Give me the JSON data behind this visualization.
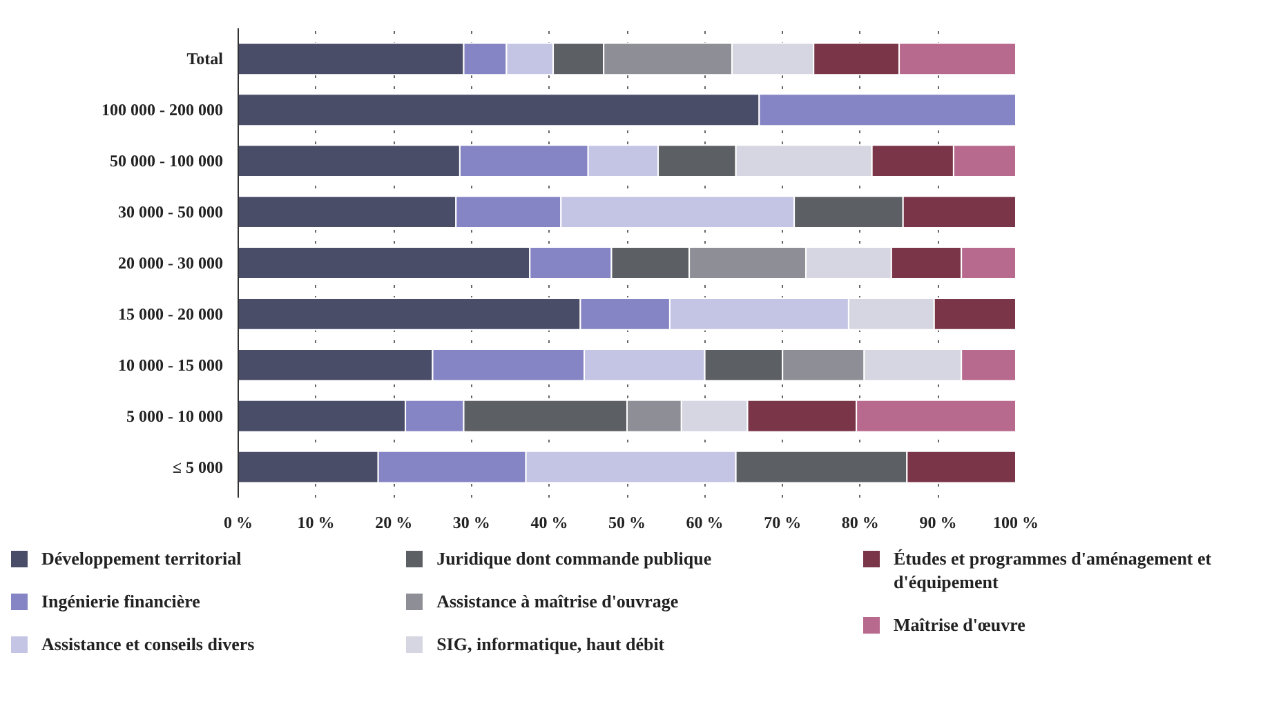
{
  "chart_data": {
    "type": "bar",
    "orientation": "horizontal",
    "stacked": true,
    "categories": [
      "Total",
      "100 000 - 200 000",
      "50 000 - 100 000",
      "30 000 - 50 000",
      "20 000 - 30 000",
      "15 000 - 20 000",
      "10 000 - 15 000",
      "5 000 - 10 000",
      "≤ 5 000"
    ],
    "series": [
      {
        "name": "Développement territorial",
        "color": "#4a4d68",
        "values": [
          29,
          67,
          28.5,
          28,
          37.5,
          44,
          25,
          21.5,
          18
        ]
      },
      {
        "name": "Ingénierie financière",
        "color": "#8584c4",
        "values": [
          5.5,
          33,
          16.5,
          13.5,
          10.5,
          11.5,
          19.5,
          7.5,
          19
        ]
      },
      {
        "name": "Assistance et conseils divers",
        "color": "#c4c4e4",
        "values": [
          6,
          null,
          9,
          30,
          null,
          23,
          15.5,
          null,
          27
        ]
      },
      {
        "name": "Juridique dont commande publique",
        "color": "#5c5f64",
        "values": [
          6.5,
          null,
          10,
          14,
          10,
          null,
          10,
          21,
          22
        ]
      },
      {
        "name": "Assistance à maîtrise d'ouvrage",
        "color": "#8e8e96",
        "values": [
          16.5,
          null,
          null,
          null,
          15,
          null,
          10.5,
          7,
          null
        ]
      },
      {
        "name": "SIG, informatique, haut débit",
        "color": "#d6d6e2",
        "values": [
          10.5,
          null,
          17.5,
          null,
          11,
          11,
          12.5,
          8.5,
          null
        ]
      },
      {
        "name": "Études et programmes d'aménagement et d'équipement",
        "color": "#7a3548",
        "values": [
          11,
          null,
          10.5,
          14.5,
          9,
          10.5,
          null,
          14,
          14
        ]
      },
      {
        "name": "Maîtrise d'œuvre",
        "color": "#b8698e",
        "values": [
          15,
          null,
          8,
          null,
          7,
          null,
          7,
          20.5,
          null
        ]
      }
    ],
    "xlim": [
      0,
      100
    ],
    "xticks": [
      {
        "value": 0,
        "label": "0 %"
      },
      {
        "value": 10,
        "label": "10 %"
      },
      {
        "value": 20,
        "label": "20 %"
      },
      {
        "value": 30,
        "label": "30 %"
      },
      {
        "value": 40,
        "label": "40 %"
      },
      {
        "value": 50,
        "label": "50 %"
      },
      {
        "value": 60,
        "label": "60 %"
      },
      {
        "value": 70,
        "label": "70 %"
      },
      {
        "value": 80,
        "label": "80 %"
      },
      {
        "value": 90,
        "label": "90 %"
      },
      {
        "value": 100,
        "label": "100 %"
      }
    ],
    "grid": "x",
    "legend": "bottom"
  }
}
